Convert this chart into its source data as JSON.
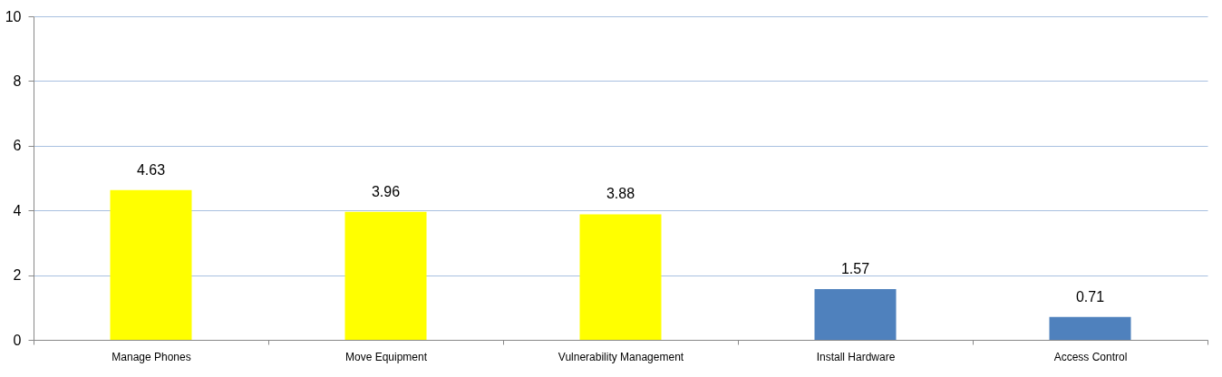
{
  "chart_data": {
    "type": "bar",
    "categories": [
      "Manage Phones",
      "Move Equipment",
      "Vulnerability Management",
      "Install Hardware",
      "Access Control"
    ],
    "values": [
      4.63,
      3.96,
      3.88,
      1.57,
      0.71
    ],
    "colors": [
      "#ffff00",
      "#ffff00",
      "#ffff00",
      "#4f81bd",
      "#4f81bd"
    ],
    "ylim": [
      0,
      10
    ],
    "yticks": [
      0,
      2,
      4,
      6,
      8,
      10
    ],
    "grid": "y",
    "data_labels": true
  }
}
